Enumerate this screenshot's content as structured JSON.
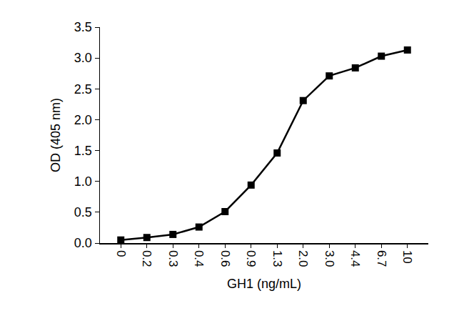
{
  "chart_data": {
    "type": "line",
    "x_label": "GH1 (ng/mL)",
    "y_label": "OD (405 nm)",
    "categories": [
      "0",
      "0.2",
      "0.3",
      "0.4",
      "0.6",
      "0.9",
      "1.3",
      "2.0",
      "3.0",
      "4.4",
      "6.7",
      "10"
    ],
    "values": [
      0.05,
      0.09,
      0.14,
      0.26,
      0.51,
      0.94,
      1.46,
      2.31,
      2.71,
      2.84,
      3.03,
      3.13
    ],
    "color": "#000000",
    "marker": "square",
    "line_style": "solid",
    "ylim": [
      0,
      3.5
    ],
    "yticks": [
      {
        "value": 0,
        "label": "0.0"
      },
      {
        "value": 0.5,
        "label": "0.5"
      },
      {
        "value": 1,
        "label": "1.0"
      },
      {
        "value": 1.5,
        "label": "1.5"
      },
      {
        "value": 2,
        "label": "2.0"
      },
      {
        "value": 2.5,
        "label": "2.5"
      },
      {
        "value": 3,
        "label": "3.0"
      },
      {
        "value": 3.5,
        "label": "3.5"
      }
    ],
    "grid": false
  }
}
